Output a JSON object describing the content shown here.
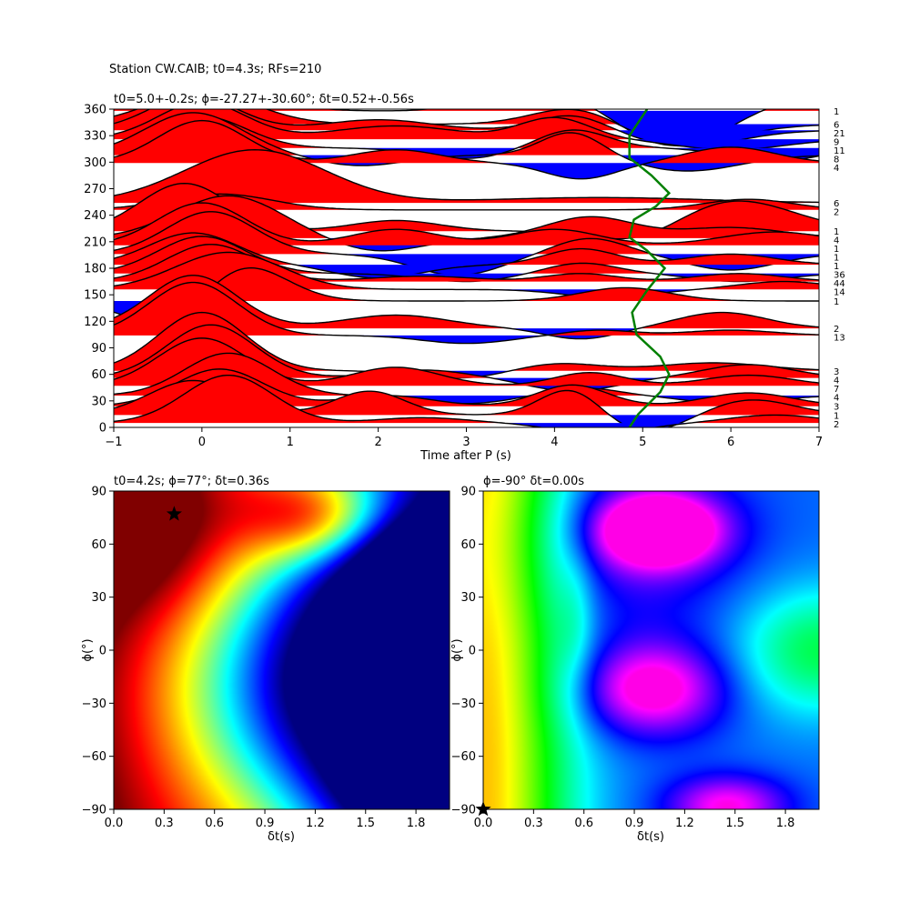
{
  "figure": {
    "suptitle": "Station CW.CAIB; t0=4.3s; RFs=210"
  },
  "chart_data": [
    {
      "type": "line",
      "panel": "receiver-functions",
      "title": "t0=5.0+-0.2s; ϕ=-27.27+-30.60°; δt=0.52+-0.56s",
      "xlabel": "Time after P (s)",
      "ylabel": "",
      "xlim": [
        -1,
        7
      ],
      "ylim": [
        0,
        360
      ],
      "xticks": [
        "−1",
        "0",
        "1",
        "2",
        "3",
        "4",
        "5",
        "6",
        "7"
      ],
      "xtick_values": [
        -1,
        0,
        1,
        2,
        3,
        4,
        5,
        6,
        7
      ],
      "yticks": [
        "0",
        "30",
        "60",
        "90",
        "120",
        "150",
        "180",
        "210",
        "240",
        "270",
        "300",
        "330",
        "360"
      ],
      "ytick_values": [
        0,
        30,
        60,
        90,
        120,
        150,
        180,
        210,
        240,
        270,
        300,
        330,
        360
      ],
      "positive_color": "#ff0000",
      "negative_color": "#0000ff",
      "model_curve_color": "#008000",
      "model_curve": {
        "x": [
          4.85,
          4.95,
          5.2,
          5.3,
          5.2,
          4.93,
          4.88,
          5.05,
          5.25,
          5.05,
          4.85,
          4.9,
          5.15,
          5.3,
          5.1,
          4.85,
          4.85,
          5.05
        ],
        "y": [
          0,
          15,
          40,
          60,
          80,
          105,
          130,
          155,
          180,
          200,
          215,
          235,
          250,
          265,
          285,
          305,
          330,
          360
        ]
      },
      "traces": [
        {
          "baz": 358,
          "count": "1",
          "pulses": [
            [
              -0.2,
              0.6,
              0.6
            ],
            [
              0.3,
              0.8,
              0.5
            ],
            [
              3.5,
              1.0,
              0.4
            ],
            [
              4.3,
              0.8,
              0.6
            ],
            [
              5.3,
              -1.6,
              0.7
            ],
            [
              6.8,
              0.6,
              0.8
            ]
          ]
        },
        {
          "baz": 343,
          "count": "6",
          "pulses": [
            [
              0.0,
              1.2,
              0.6
            ],
            [
              4.3,
              0.8,
              0.5
            ],
            [
              5.3,
              -0.8,
              0.7
            ]
          ]
        },
        {
          "baz": 336,
          "count": "21",
          "pulses": [
            [
              -0.1,
              1.3,
              0.5
            ],
            [
              2.0,
              0.4,
              0.6
            ],
            [
              4.2,
              0.6,
              0.4
            ],
            [
              5.5,
              -0.6,
              0.6
            ]
          ]
        },
        {
          "baz": 326,
          "count": "9",
          "pulses": [
            [
              0.0,
              1.4,
              0.5
            ],
            [
              2.2,
              0.5,
              0.7
            ],
            [
              4.0,
              0.8,
              0.4
            ],
            [
              6.0,
              -0.4,
              0.6
            ]
          ]
        },
        {
          "baz": 316,
          "count": "11",
          "pulses": [
            [
              0.0,
              1.2,
              0.5
            ],
            [
              3.0,
              -0.4,
              0.5
            ],
            [
              4.2,
              0.7,
              0.4
            ],
            [
              6.5,
              -0.5,
              0.5
            ]
          ]
        },
        {
          "baz": 308,
          "count": "8",
          "pulses": [
            [
              -0.1,
              1.6,
              0.55
            ],
            [
              1.8,
              -0.4,
              0.5
            ],
            [
              4.2,
              0.9,
              0.35
            ],
            [
              5.5,
              -0.6,
              0.6
            ]
          ]
        },
        {
          "baz": 299,
          "count": "4",
          "pulses": [
            [
              0.0,
              1.6,
              0.5
            ],
            [
              2.2,
              0.5,
              0.5
            ],
            [
              4.3,
              -0.6,
              0.4
            ],
            [
              6.0,
              0.6,
              0.5
            ]
          ]
        },
        {
          "baz": 254,
          "count": "6",
          "pulses": [
            [
              0.6,
              2.0,
              0.8
            ],
            [
              4.5,
              0.2,
              1.2
            ]
          ]
        },
        {
          "baz": 246,
          "count": "2",
          "pulses": [
            [
              0.2,
              0.6,
              0.6
            ],
            [
              6.2,
              0.4,
              0.5
            ]
          ]
        },
        {
          "baz": 222,
          "count": "1",
          "pulses": [
            [
              -0.2,
              1.8,
              0.5
            ],
            [
              2.2,
              0.4,
              0.5
            ],
            [
              5.0,
              -0.6,
              0.5
            ],
            [
              6.0,
              1.2,
              0.7
            ]
          ]
        },
        {
          "baz": 214,
          "count": "4",
          "pulses": [
            [
              0.3,
              1.6,
              0.6
            ],
            [
              2.0,
              -0.5,
              0.5
            ],
            [
              4.4,
              0.8,
              0.5
            ],
            [
              6.0,
              0.4,
              0.6
            ]
          ]
        },
        {
          "baz": 206,
          "count": "1",
          "pulses": [
            [
              0.0,
              1.6,
              0.5
            ],
            [
              2.2,
              0.6,
              0.5
            ],
            [
              4.0,
              0.6,
              0.5
            ],
            [
              6.5,
              0.5,
              0.6
            ]
          ]
        },
        {
          "baz": 196,
          "count": "1",
          "pulses": [
            [
              0.1,
              1.6,
              0.5
            ],
            [
              2.9,
              -0.8,
              0.5
            ],
            [
              4.4,
              0.6,
              0.4
            ],
            [
              6.0,
              -0.6,
              0.5
            ]
          ]
        },
        {
          "baz": 184,
          "count": "1",
          "pulses": [
            [
              -0.1,
              1.2,
              0.5
            ],
            [
              2.0,
              -0.5,
              0.5
            ],
            [
              4.3,
              0.6,
              0.4
            ],
            [
              6.0,
              0.4,
              0.5
            ]
          ]
        },
        {
          "baz": 174,
          "count": "36",
          "pulses": [
            [
              0.0,
              1.4,
              0.5
            ],
            [
              3.0,
              -0.3,
              0.5
            ],
            [
              4.3,
              0.4,
              0.4
            ],
            [
              6.1,
              -0.3,
              0.5
            ]
          ]
        },
        {
          "baz": 165,
          "count": "44",
          "pulses": [
            [
              0.1,
              1.4,
              0.5
            ],
            [
              2.5,
              0.2,
              0.6
            ],
            [
              4.3,
              0.3,
              0.4
            ],
            [
              6.1,
              0.3,
              0.5
            ]
          ]
        },
        {
          "baz": 156,
          "count": "14",
          "pulses": [
            [
              0.3,
              1.4,
              0.6
            ],
            [
              4.6,
              -0.3,
              0.5
            ],
            [
              6.6,
              0.3,
              0.5
            ]
          ]
        },
        {
          "baz": 143,
          "count": "1",
          "pulses": [
            [
              -0.3,
              -1.2,
              0.5
            ],
            [
              0.4,
              1.6,
              0.5
            ],
            [
              4.8,
              0.5,
              0.5
            ]
          ]
        },
        {
          "baz": 112,
          "count": "2",
          "pulses": [
            [
              -0.1,
              2.0,
              0.5
            ],
            [
              2.2,
              0.5,
              0.6
            ],
            [
              4.3,
              -0.4,
              0.4
            ],
            [
              5.9,
              0.6,
              0.5
            ]
          ]
        },
        {
          "baz": 104,
          "count": "13",
          "pulses": [
            [
              -0.1,
              2.0,
              0.5
            ],
            [
              3.0,
              -0.3,
              0.5
            ],
            [
              4.5,
              0.2,
              0.4
            ],
            [
              6.0,
              0.2,
              0.5
            ]
          ]
        },
        {
          "baz": 64,
          "count": "3",
          "pulses": [
            [
              0.0,
              2.2,
              0.5
            ],
            [
              3.0,
              -0.3,
              0.5
            ],
            [
              4.0,
              0.3,
              0.5
            ],
            [
              5.8,
              0.3,
              0.6
            ]
          ]
        },
        {
          "baz": 56,
          "count": "4",
          "pulses": [
            [
              0.1,
              2.0,
              0.5
            ],
            [
              2.5,
              0.3,
              0.5
            ],
            [
              4.2,
              -0.5,
              0.5
            ],
            [
              6.2,
              0.5,
              0.5
            ]
          ]
        },
        {
          "baz": 47,
          "count": "7",
          "pulses": [
            [
              0.0,
              1.8,
              0.5
            ],
            [
              2.2,
              0.7,
              0.5
            ],
            [
              4.4,
              0.5,
              0.4
            ],
            [
              6.2,
              0.4,
              0.5
            ]
          ]
        },
        {
          "baz": 36,
          "count": "4",
          "pulses": [
            [
              0.3,
              1.6,
              0.5
            ],
            [
              3.0,
              -0.3,
              0.5
            ],
            [
              4.3,
              0.3,
              0.4
            ],
            [
              6.0,
              -0.3,
              0.5
            ]
          ]
        },
        {
          "baz": 24,
          "count": "3",
          "pulses": [
            [
              0.2,
              1.4,
              0.5
            ],
            [
              2.1,
              0.4,
              0.5
            ],
            [
              4.2,
              0.8,
              0.4
            ],
            [
              6.2,
              0.5,
              0.5
            ]
          ]
        },
        {
          "baz": 14,
          "count": "1",
          "pulses": [
            [
              -0.1,
              1.3,
              0.5
            ],
            [
              1.9,
              0.9,
              0.4
            ],
            [
              4.2,
              1.1,
              0.35
            ],
            [
              5.0,
              -0.7,
              0.5
            ],
            [
              6.2,
              0.6,
              0.5
            ]
          ]
        },
        {
          "baz": 5,
          "count": "2",
          "pulses": [
            [
              0.3,
              1.8,
              0.5
            ],
            [
              2.5,
              0.2,
              0.5
            ],
            [
              4.5,
              -0.4,
              0.5
            ],
            [
              6.5,
              0.3,
              0.5
            ]
          ]
        }
      ]
    },
    {
      "type": "heatmap",
      "panel": "grid-search-left",
      "title": "t0=4.2s; ϕ=77°; δt=0.36s",
      "xlabel": "δt(s)",
      "ylabel": "ϕ(°)",
      "xlim": [
        0,
        2
      ],
      "ylim": [
        -90,
        90
      ],
      "xticks": [
        "0.0",
        "0.3",
        "0.6",
        "0.9",
        "1.2",
        "1.5",
        "1.8"
      ],
      "xtick_values": [
        0,
        0.3,
        0.6,
        0.9,
        1.2,
        1.5,
        1.8
      ],
      "yticks": [
        "−90",
        "−60",
        "−30",
        "0",
        "30",
        "60",
        "90"
      ],
      "ytick_values": [
        -90,
        -60,
        -30,
        0,
        30,
        60,
        90
      ],
      "colormap": "jet",
      "best_fit": {
        "dt": 0.36,
        "phi": 77
      },
      "marker_color": "#000000"
    },
    {
      "type": "heatmap",
      "panel": "grid-search-right",
      "title": "ϕ=-90° δt=0.00s",
      "xlabel": "δt(s)",
      "ylabel": "ϕ(°)",
      "xlim": [
        0,
        2
      ],
      "ylim": [
        -90,
        90
      ],
      "xticks": [
        "0.0",
        "0.3",
        "0.6",
        "0.9",
        "1.2",
        "1.5",
        "1.8"
      ],
      "xtick_values": [
        0,
        0.3,
        0.6,
        0.9,
        1.2,
        1.5,
        1.8
      ],
      "yticks": [
        "−90",
        "−60",
        "−30",
        "0",
        "30",
        "60",
        "90"
      ],
      "ytick_values": [
        -90,
        -60,
        -30,
        0,
        30,
        60,
        90
      ],
      "colormap": "hsv",
      "best_fit": {
        "dt": 0.0,
        "phi": -90
      },
      "marker_color": "#000000"
    }
  ]
}
